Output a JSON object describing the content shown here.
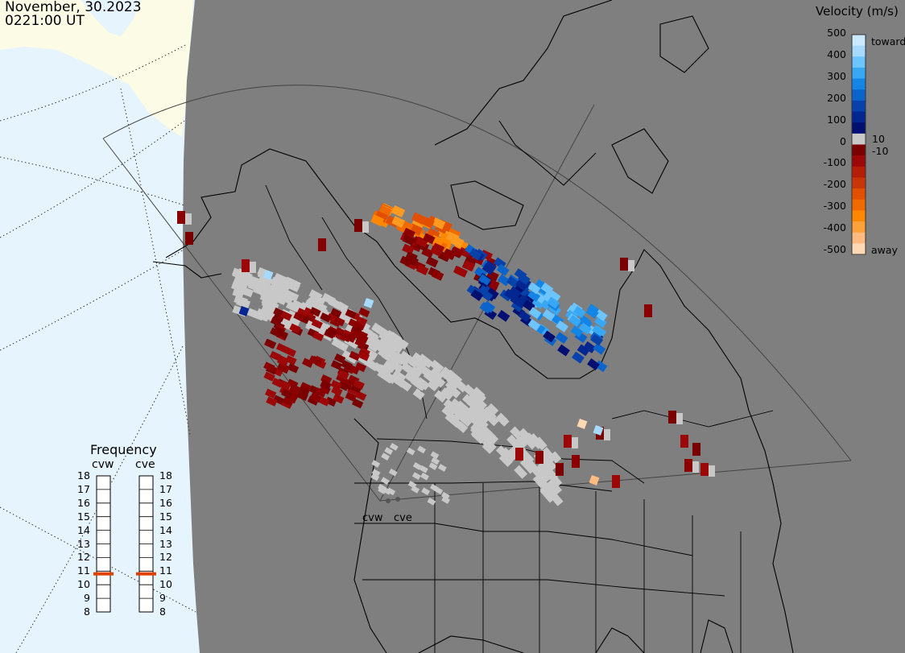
{
  "header": {
    "date": "November, 30.2023",
    "time": "0221:00 UT"
  },
  "velocity_scale": {
    "title": "Velocity (m/s)",
    "ticks": [
      "500",
      "400",
      "300",
      "200",
      "100",
      "0",
      "-100",
      "-200",
      "-300",
      "-400",
      "-500"
    ],
    "inner_labels": [
      "10",
      "-10"
    ],
    "toward_label": "toward",
    "away_label": "away",
    "colors": [
      "#cbe9ff",
      "#a6dbff",
      "#6ec4ff",
      "#38a8f5",
      "#1485e5",
      "#0a64cc",
      "#0642aa",
      "#032690",
      "#011070",
      "#c8c8c8",
      "#7a0000",
      "#9c0808",
      "#b41e05",
      "#c83508",
      "#e05000",
      "#f06a00",
      "#ff8800",
      "#ffa13a",
      "#ffbb80",
      "#ffd8b4"
    ]
  },
  "frequency": {
    "title": "Frequency",
    "radars": [
      "cvw",
      "cve"
    ],
    "ticks": [
      "18",
      "17",
      "16",
      "15",
      "14",
      "13",
      "12",
      "11",
      "10",
      "9",
      "8"
    ],
    "values_mhz": [
      10.8,
      10.8
    ],
    "marker_color": "#e04000"
  },
  "map": {
    "station_labels": [
      "cvw",
      "cve"
    ],
    "background_gray": "#7f7f7f",
    "ocean_color": "#e6f4fd",
    "land_color": "#fcfbe6",
    "echo_gray": "#c8c8c8"
  }
}
